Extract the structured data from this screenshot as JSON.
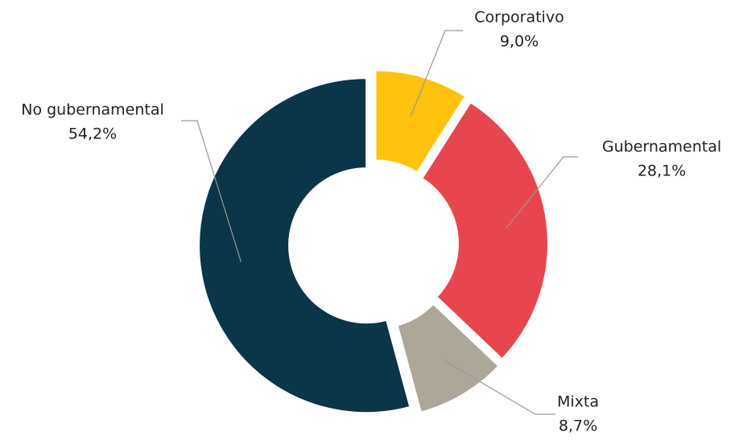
{
  "chart_data": {
    "type": "donut",
    "categories": [
      "Corporativo",
      "Gubernamental",
      "Mixta",
      "No gubernamental"
    ],
    "values": [
      9.0,
      28.1,
      8.7,
      54.2
    ],
    "value_labels": [
      "9,0%",
      "28,1%",
      "8,7%",
      "54,2%"
    ],
    "colors": [
      "#ffc20e",
      "#e8464e",
      "#ada799",
      "#0b3549"
    ]
  }
}
